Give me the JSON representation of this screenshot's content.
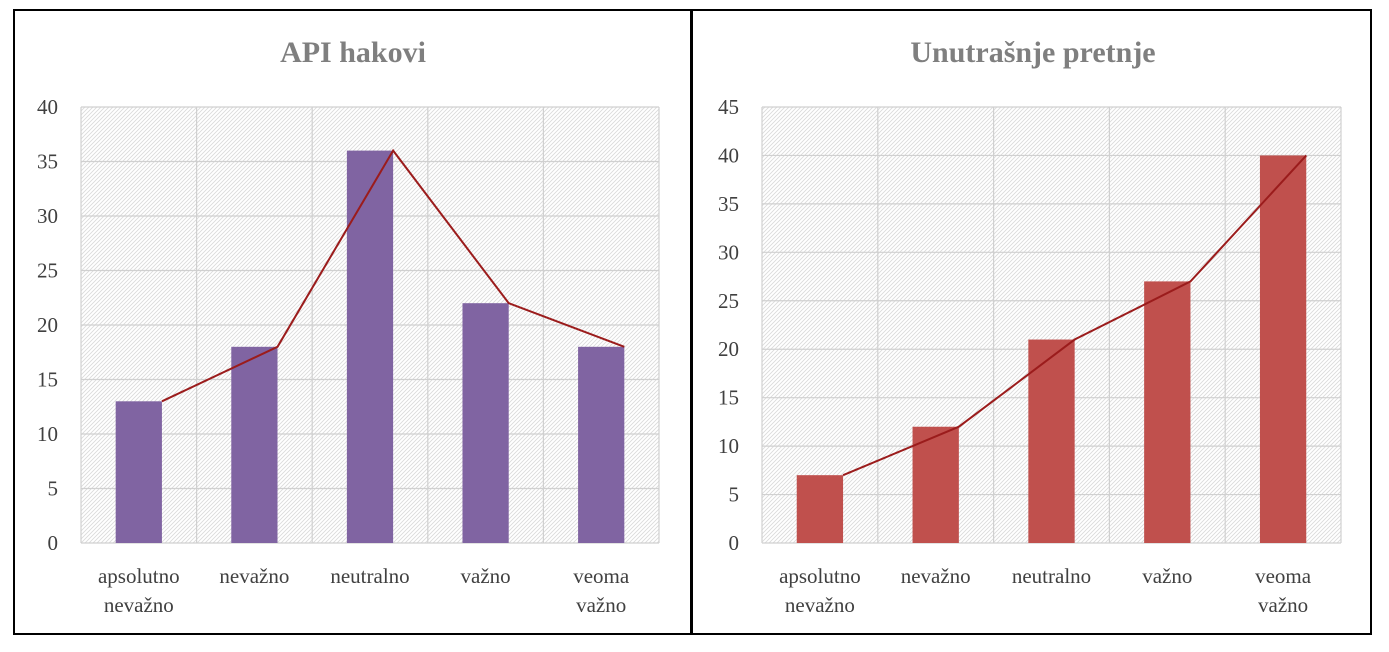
{
  "chart_data": [
    {
      "type": "bar",
      "title": "API hakovi",
      "categories": [
        "apsolutno nevažno",
        "nevažno",
        "neutralno",
        "važno",
        "veoma važno"
      ],
      "category_lines": [
        [
          "apsolutno",
          "nevažno"
        ],
        [
          "nevažno"
        ],
        [
          "neutralno"
        ],
        [
          "važno"
        ],
        [
          "veoma",
          "važno"
        ]
      ],
      "values": [
        13,
        18,
        36,
        22,
        18
      ],
      "ylim": [
        0,
        40
      ],
      "ystep": 5,
      "bar_color": "#8064a2",
      "line_color": "#9b1c1c",
      "grid": true
    },
    {
      "type": "bar",
      "title": "Unutrašnje pretnje",
      "categories": [
        "apsolutno nevažno",
        "nevažno",
        "neutralno",
        "važno",
        "veoma važno"
      ],
      "category_lines": [
        [
          "apsolutno",
          "nevažno"
        ],
        [
          "nevažno"
        ],
        [
          "neutralno"
        ],
        [
          "važno"
        ],
        [
          "veoma",
          "važno"
        ]
      ],
      "values": [
        7,
        12,
        21,
        27,
        40
      ],
      "ylim": [
        0,
        45
      ],
      "ystep": 5,
      "bar_color": "#c0504d",
      "line_color": "#9b1c1c",
      "grid": true
    }
  ]
}
